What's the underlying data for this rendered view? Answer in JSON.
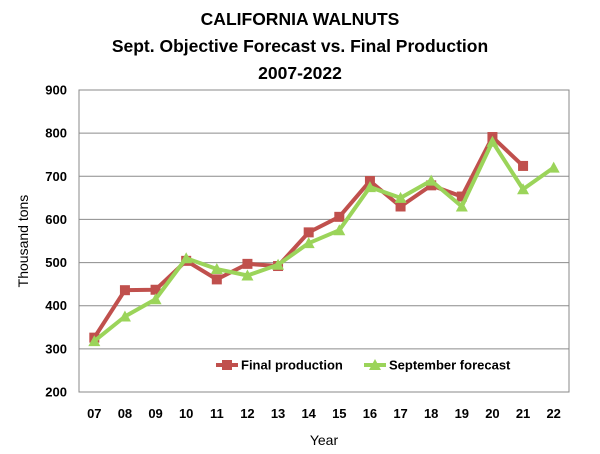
{
  "chart_data": {
    "type": "line",
    "title_lines": [
      "CALIFORNIA WALNUTS",
      "Sept. Objective Forecast vs. Final Production",
      "2007-2022"
    ],
    "xlabel": "Year",
    "ylabel": "Thousand tons",
    "categories": [
      "07",
      "08",
      "09",
      "10",
      "11",
      "12",
      "13",
      "14",
      "15",
      "16",
      "17",
      "18",
      "19",
      "20",
      "21",
      "22"
    ],
    "ylim": [
      200,
      900
    ],
    "yticks": [
      200,
      300,
      400,
      500,
      600,
      700,
      800,
      900
    ],
    "grid": true,
    "legend_position": "bottom-right inside",
    "series": [
      {
        "name": "Final production",
        "color": "#c0504d",
        "marker": "square",
        "values": [
          326,
          436,
          437,
          504,
          461,
          497,
          492,
          570,
          606,
          689,
          630,
          679,
          653,
          791,
          724,
          null
        ]
      },
      {
        "name": "September forecast",
        "color": "#9bd45a",
        "marker": "triangle",
        "values": [
          318,
          375,
          415,
          510,
          485,
          470,
          495,
          545,
          575,
          675,
          650,
          690,
          630,
          780,
          670,
          720
        ]
      }
    ]
  }
}
